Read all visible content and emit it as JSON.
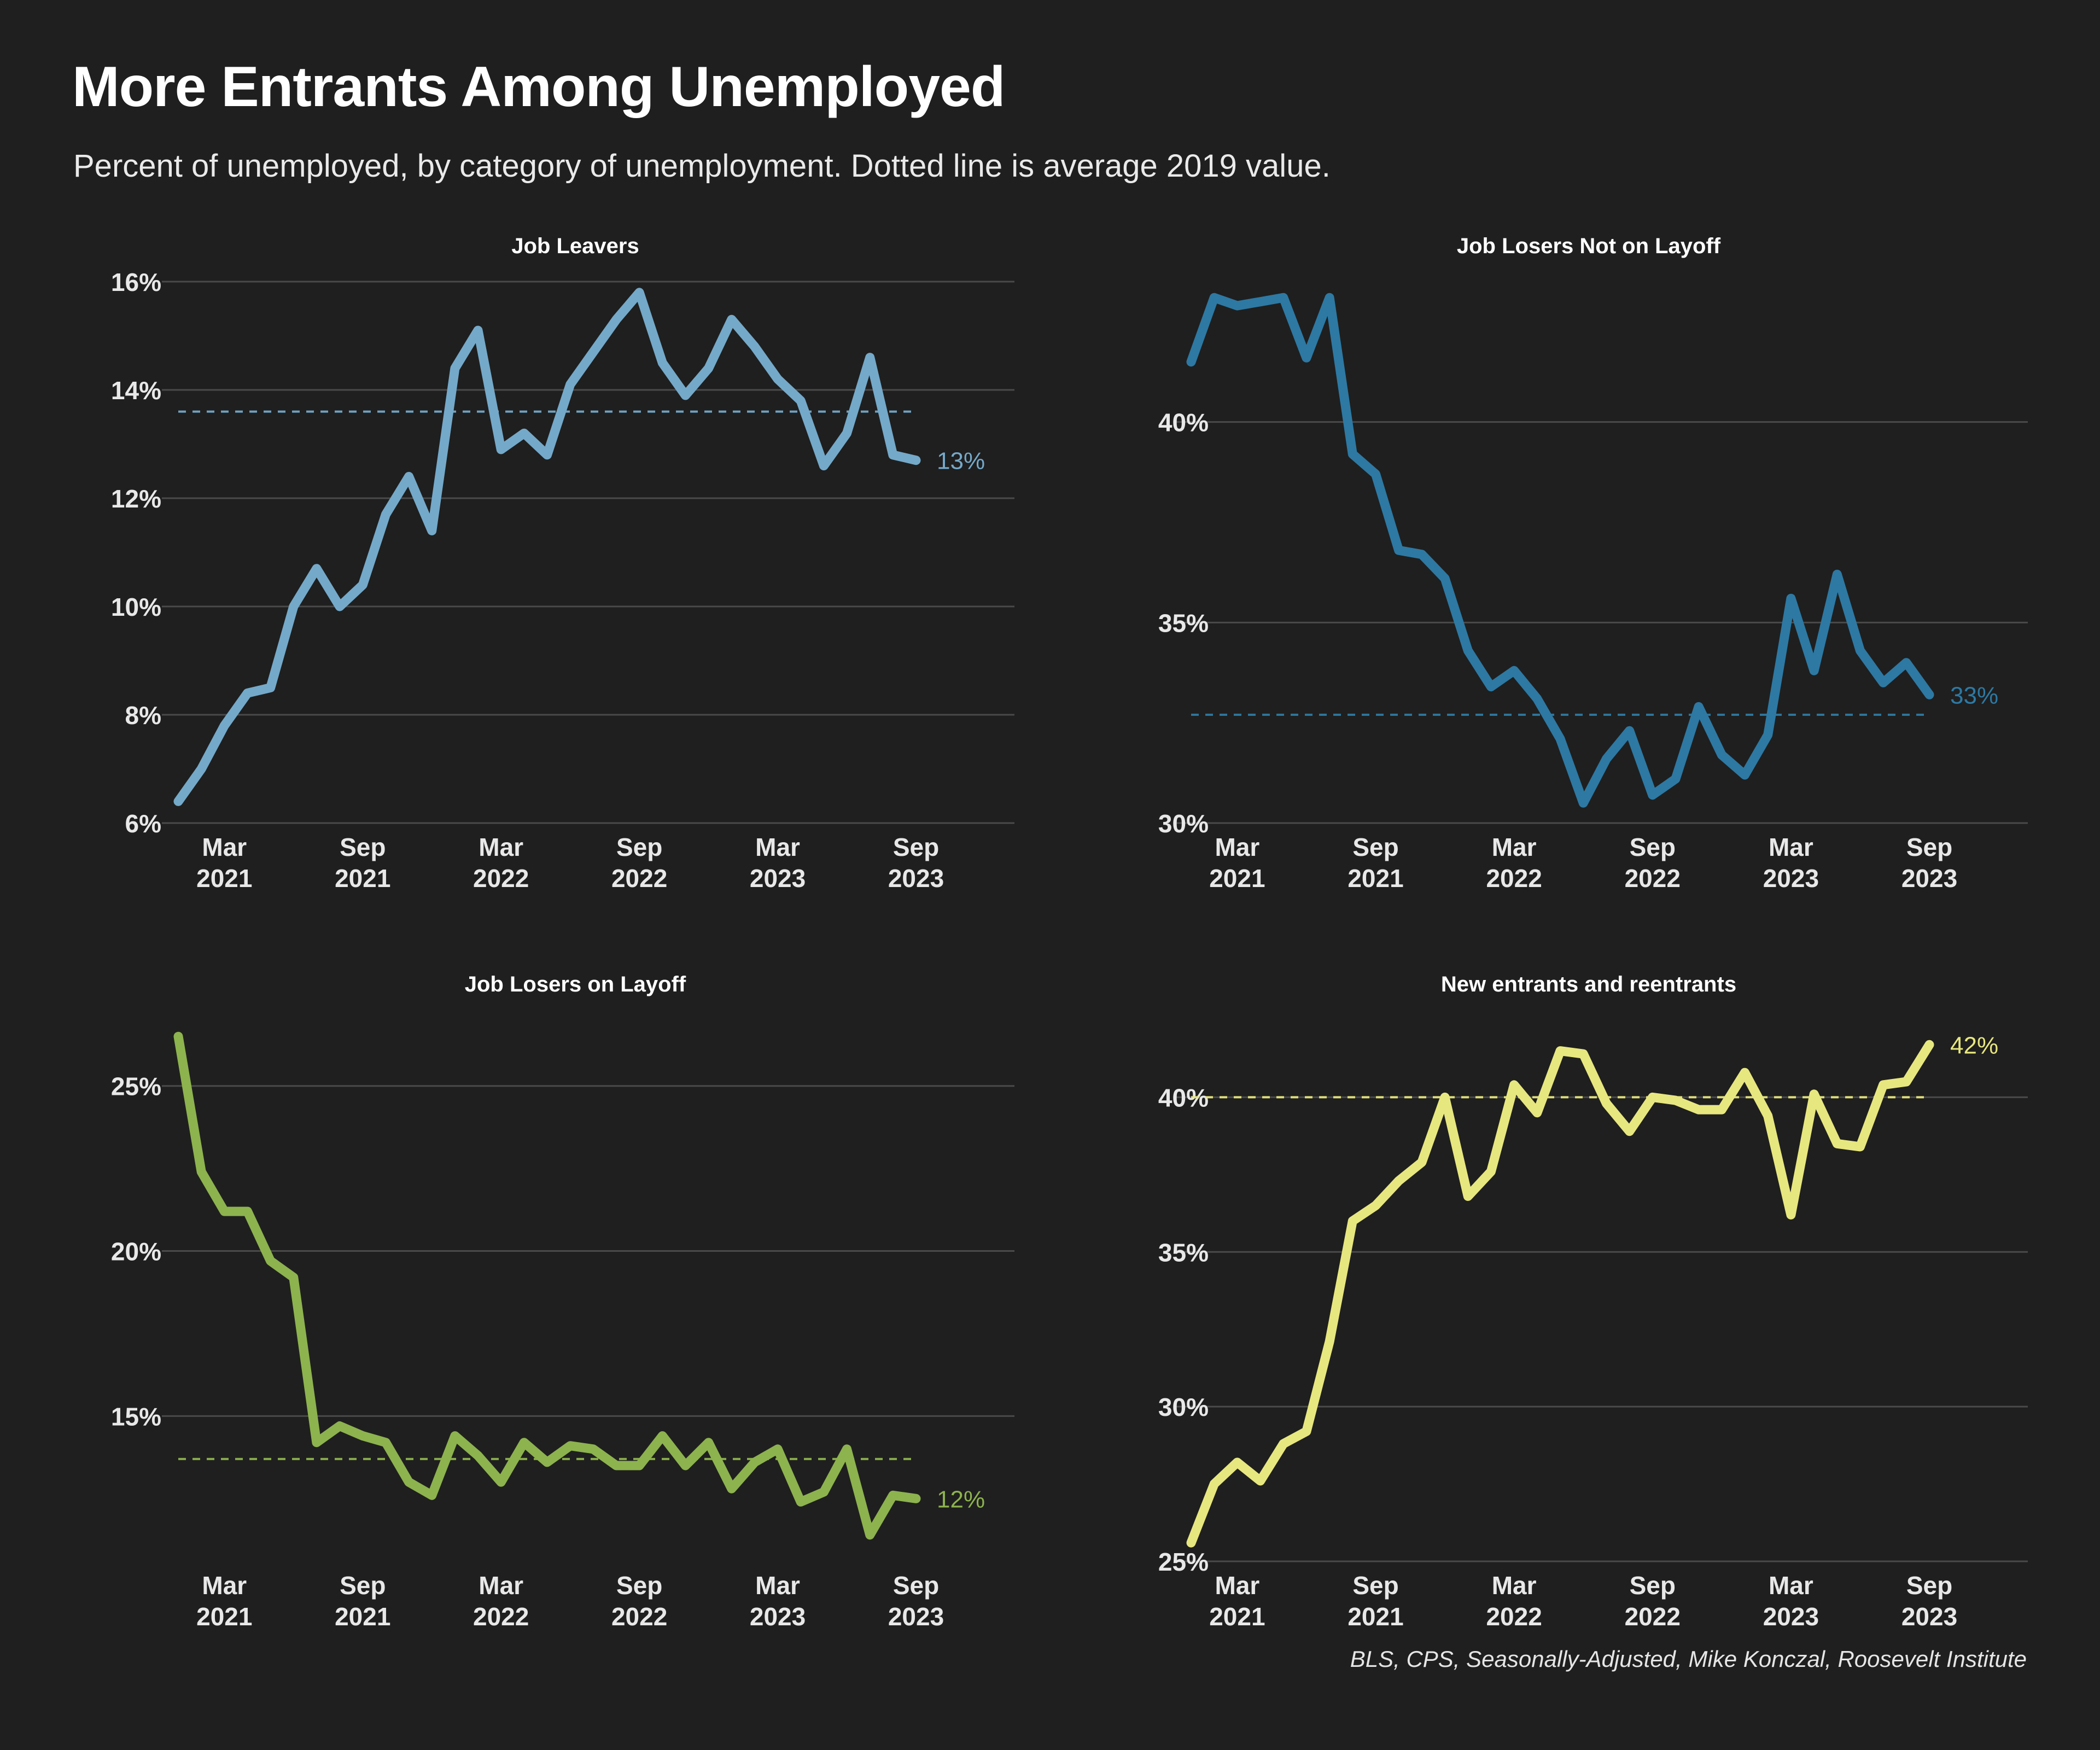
{
  "title": "More Entrants Among Unemployed",
  "subtitle": "Percent of unemployed, by category of unemployment. Dotted line is average 2019 value.",
  "source": "BLS, CPS, Seasonally-Adjusted, Mike Konczal, Roosevelt Institute",
  "chart_data": [
    {
      "type": "line",
      "title": "Job Leavers",
      "color": "#74a9c9",
      "x_start": "2021-01",
      "x_ticks": [
        "Mar\n2021",
        "Sep\n2021",
        "Mar\n2022",
        "Sep\n2022",
        "Mar\n2023",
        "Sep\n2023"
      ],
      "ylim": [
        6,
        16
      ],
      "y_ticks": [
        6,
        8,
        10,
        12,
        14,
        16
      ],
      "y_tick_labels": [
        "6%",
        "8%",
        "10%",
        "12%",
        "14%",
        "16%"
      ],
      "grid": true,
      "reference_2019": 13.6,
      "end_label": "13%",
      "values": [
        6.4,
        7.0,
        7.8,
        8.4,
        8.5,
        10.0,
        10.7,
        10.0,
        10.4,
        11.7,
        12.4,
        11.4,
        14.4,
        15.1,
        12.9,
        13.2,
        12.8,
        14.1,
        14.7,
        15.3,
        15.8,
        14.5,
        13.9,
        14.4,
        15.3,
        14.8,
        14.2,
        13.8,
        12.6,
        13.2,
        14.6,
        12.8,
        12.7
      ]
    },
    {
      "type": "line",
      "title": "Job Losers Not on Layoff",
      "color": "#2d79a3",
      "x_start": "2021-01",
      "x_ticks": [
        "Mar\n2021",
        "Sep\n2021",
        "Mar\n2022",
        "Sep\n2022",
        "Mar\n2023",
        "Sep\n2023"
      ],
      "ylim": [
        30,
        43.5
      ],
      "y_ticks": [
        30,
        35,
        40
      ],
      "y_tick_labels": [
        "30%",
        "35%",
        "40%"
      ],
      "grid": true,
      "reference_2019": 32.7,
      "end_label": "33%",
      "values": [
        41.5,
        43.1,
        42.9,
        43.0,
        43.1,
        41.6,
        43.1,
        39.2,
        38.7,
        36.8,
        36.7,
        36.1,
        34.3,
        33.4,
        33.8,
        33.1,
        32.1,
        30.5,
        31.6,
        32.3,
        30.7,
        31.1,
        32.9,
        31.7,
        31.2,
        32.2,
        35.6,
        33.8,
        36.2,
        34.3,
        33.5,
        34.0,
        33.2
      ]
    },
    {
      "type": "line",
      "title": "Job Losers on Layoff",
      "color": "#8db34e",
      "x_start": "2021-01",
      "x_ticks": [
        "Mar\n2021",
        "Sep\n2021",
        "Mar\n2022",
        "Sep\n2022",
        "Mar\n2023",
        "Sep\n2023"
      ],
      "ylim": [
        10.6,
        27.0
      ],
      "y_ticks": [
        15,
        20,
        25
      ],
      "y_tick_labels": [
        "15%",
        "20%",
        "25%"
      ],
      "grid": true,
      "reference_2019": 13.7,
      "end_label": "12%",
      "values": [
        26.5,
        22.4,
        21.2,
        21.2,
        19.7,
        19.2,
        14.2,
        14.7,
        14.4,
        14.2,
        13.0,
        12.6,
        14.4,
        13.8,
        13.0,
        14.2,
        13.6,
        14.1,
        14.0,
        13.5,
        13.5,
        14.4,
        13.5,
        14.2,
        12.8,
        13.6,
        14.0,
        12.4,
        12.7,
        14.0,
        11.4,
        12.6,
        12.5
      ]
    },
    {
      "type": "line",
      "title": "New entrants and reentrants",
      "color": "#e7e77f",
      "x_start": "2021-01",
      "x_ticks": [
        "Mar\n2021",
        "Sep\n2021",
        "Mar\n2022",
        "Sep\n2022",
        "Mar\n2023",
        "Sep\n2023"
      ],
      "ylim": [
        25,
        42.5
      ],
      "y_ticks": [
        25,
        30,
        35,
        40
      ],
      "y_tick_labels": [
        "25%",
        "30%",
        "35%",
        "40%"
      ],
      "grid": true,
      "reference_2019": 40.0,
      "end_label": "42%",
      "values": [
        25.6,
        27.5,
        28.2,
        27.6,
        28.8,
        29.2,
        32.1,
        36.0,
        36.5,
        37.3,
        37.9,
        40.0,
        36.8,
        37.6,
        40.4,
        39.5,
        41.5,
        41.4,
        39.8,
        38.9,
        40.0,
        39.9,
        39.6,
        39.6,
        40.8,
        39.4,
        36.2,
        40.1,
        38.5,
        38.4,
        40.4,
        40.5,
        41.7
      ]
    }
  ]
}
